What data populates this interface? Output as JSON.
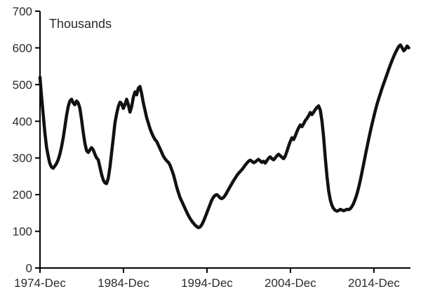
{
  "chart": {
    "unit_label": "Thousands"
  },
  "chart_data": {
    "type": "line",
    "title": "",
    "ylabel": "Thousands",
    "xlabel": "",
    "ylim": [
      0,
      700
    ],
    "y_ticks": [
      0,
      100,
      200,
      300,
      400,
      500,
      600,
      700
    ],
    "xlim": [
      1974.92,
      2019.3
    ],
    "x_tick_positions": [
      1974.92,
      1984.92,
      1994.92,
      2004.92,
      2014.92
    ],
    "x_tick_labels": [
      "1974-Dec",
      "1984-Dec",
      "1994-Dec",
      "2004-Dec",
      "2014-Dec"
    ],
    "grid": false,
    "legend": "none",
    "line_color": "#111111",
    "axis_color": "#000000",
    "line_width": 4.5,
    "series": [
      {
        "name": "Thousands",
        "points": [
          [
            1974.92,
            520
          ],
          [
            1975.1,
            470
          ],
          [
            1975.3,
            420
          ],
          [
            1975.5,
            370
          ],
          [
            1975.7,
            330
          ],
          [
            1975.9,
            305
          ],
          [
            1976.1,
            285
          ],
          [
            1976.3,
            275
          ],
          [
            1976.5,
            272
          ],
          [
            1976.7,
            278
          ],
          [
            1976.9,
            285
          ],
          [
            1977.1,
            295
          ],
          [
            1977.3,
            310
          ],
          [
            1977.5,
            330
          ],
          [
            1977.7,
            355
          ],
          [
            1977.9,
            385
          ],
          [
            1978.1,
            415
          ],
          [
            1978.3,
            440
          ],
          [
            1978.5,
            455
          ],
          [
            1978.7,
            460
          ],
          [
            1978.9,
            450
          ],
          [
            1979.1,
            445
          ],
          [
            1979.3,
            455
          ],
          [
            1979.5,
            450
          ],
          [
            1979.7,
            435
          ],
          [
            1979.9,
            405
          ],
          [
            1980.1,
            370
          ],
          [
            1980.3,
            340
          ],
          [
            1980.5,
            320
          ],
          [
            1980.7,
            315
          ],
          [
            1980.9,
            322
          ],
          [
            1981.1,
            328
          ],
          [
            1981.3,
            322
          ],
          [
            1981.5,
            310
          ],
          [
            1981.7,
            300
          ],
          [
            1981.9,
            295
          ],
          [
            1982.1,
            275
          ],
          [
            1982.3,
            255
          ],
          [
            1982.5,
            240
          ],
          [
            1982.7,
            232
          ],
          [
            1982.9,
            230
          ],
          [
            1983.1,
            245
          ],
          [
            1983.3,
            275
          ],
          [
            1983.5,
            315
          ],
          [
            1983.7,
            355
          ],
          [
            1983.9,
            395
          ],
          [
            1984.1,
            420
          ],
          [
            1984.3,
            440
          ],
          [
            1984.5,
            452
          ],
          [
            1984.7,
            448
          ],
          [
            1984.9,
            435
          ],
          [
            1985.1,
            445
          ],
          [
            1985.3,
            460
          ],
          [
            1985.5,
            445
          ],
          [
            1985.7,
            425
          ],
          [
            1985.9,
            440
          ],
          [
            1986.1,
            465
          ],
          [
            1986.3,
            480
          ],
          [
            1986.5,
            472
          ],
          [
            1986.7,
            490
          ],
          [
            1986.9,
            495
          ],
          [
            1987.1,
            475
          ],
          [
            1987.3,
            450
          ],
          [
            1987.5,
            430
          ],
          [
            1987.7,
            410
          ],
          [
            1987.9,
            395
          ],
          [
            1988.1,
            380
          ],
          [
            1988.3,
            368
          ],
          [
            1988.5,
            358
          ],
          [
            1988.7,
            350
          ],
          [
            1988.9,
            345
          ],
          [
            1989.1,
            335
          ],
          [
            1989.3,
            325
          ],
          [
            1989.5,
            315
          ],
          [
            1989.7,
            305
          ],
          [
            1989.9,
            298
          ],
          [
            1990.1,
            292
          ],
          [
            1990.3,
            288
          ],
          [
            1990.5,
            280
          ],
          [
            1990.7,
            268
          ],
          [
            1990.9,
            255
          ],
          [
            1991.1,
            238
          ],
          [
            1991.3,
            220
          ],
          [
            1991.5,
            205
          ],
          [
            1991.7,
            192
          ],
          [
            1991.9,
            182
          ],
          [
            1992.1,
            172
          ],
          [
            1992.3,
            162
          ],
          [
            1992.5,
            152
          ],
          [
            1992.7,
            143
          ],
          [
            1992.9,
            135
          ],
          [
            1993.1,
            128
          ],
          [
            1993.3,
            122
          ],
          [
            1993.5,
            117
          ],
          [
            1993.7,
            113
          ],
          [
            1993.9,
            110
          ],
          [
            1994.1,
            112
          ],
          [
            1994.3,
            118
          ],
          [
            1994.5,
            127
          ],
          [
            1994.7,
            138
          ],
          [
            1994.9,
            150
          ],
          [
            1995.1,
            162
          ],
          [
            1995.3,
            174
          ],
          [
            1995.5,
            185
          ],
          [
            1995.7,
            193
          ],
          [
            1995.9,
            198
          ],
          [
            1996.1,
            200
          ],
          [
            1996.3,
            196
          ],
          [
            1996.5,
            191
          ],
          [
            1996.7,
            189
          ],
          [
            1996.9,
            192
          ],
          [
            1997.1,
            198
          ],
          [
            1997.3,
            206
          ],
          [
            1997.5,
            214
          ],
          [
            1997.7,
            222
          ],
          [
            1997.9,
            230
          ],
          [
            1998.1,
            238
          ],
          [
            1998.3,
            245
          ],
          [
            1998.5,
            252
          ],
          [
            1998.7,
            258
          ],
          [
            1998.9,
            263
          ],
          [
            1999.1,
            268
          ],
          [
            1999.3,
            274
          ],
          [
            1999.5,
            280
          ],
          [
            1999.7,
            286
          ],
          [
            1999.9,
            291
          ],
          [
            2000.1,
            294
          ],
          [
            2000.3,
            291
          ],
          [
            2000.5,
            287
          ],
          [
            2000.7,
            289
          ],
          [
            2000.9,
            293
          ],
          [
            2001.1,
            296
          ],
          [
            2001.3,
            292
          ],
          [
            2001.5,
            288
          ],
          [
            2001.7,
            291
          ],
          [
            2001.9,
            286
          ],
          [
            2002.1,
            293
          ],
          [
            2002.3,
            299
          ],
          [
            2002.5,
            303
          ],
          [
            2002.7,
            298
          ],
          [
            2002.9,
            295
          ],
          [
            2003.1,
            300
          ],
          [
            2003.3,
            306
          ],
          [
            2003.5,
            310
          ],
          [
            2003.7,
            306
          ],
          [
            2003.9,
            302
          ],
          [
            2004.1,
            298
          ],
          [
            2004.3,
            305
          ],
          [
            2004.5,
            318
          ],
          [
            2004.7,
            332
          ],
          [
            2004.9,
            345
          ],
          [
            2005.1,
            355
          ],
          [
            2005.3,
            350
          ],
          [
            2005.5,
            360
          ],
          [
            2005.7,
            372
          ],
          [
            2005.9,
            382
          ],
          [
            2006.1,
            390
          ],
          [
            2006.3,
            385
          ],
          [
            2006.5,
            393
          ],
          [
            2006.7,
            402
          ],
          [
            2006.9,
            408
          ],
          [
            2007.1,
            415
          ],
          [
            2007.3,
            424
          ],
          [
            2007.5,
            418
          ],
          [
            2007.7,
            425
          ],
          [
            2007.9,
            432
          ],
          [
            2008.1,
            438
          ],
          [
            2008.3,
            442
          ],
          [
            2008.5,
            430
          ],
          [
            2008.7,
            400
          ],
          [
            2008.9,
            355
          ],
          [
            2009.1,
            300
          ],
          [
            2009.3,
            250
          ],
          [
            2009.5,
            210
          ],
          [
            2009.7,
            185
          ],
          [
            2009.9,
            170
          ],
          [
            2010.1,
            162
          ],
          [
            2010.3,
            157
          ],
          [
            2010.5,
            155
          ],
          [
            2010.7,
            157
          ],
          [
            2010.9,
            160
          ],
          [
            2011.1,
            158
          ],
          [
            2011.3,
            156
          ],
          [
            2011.5,
            158
          ],
          [
            2011.7,
            160
          ],
          [
            2011.9,
            159
          ],
          [
            2012.1,
            162
          ],
          [
            2012.3,
            168
          ],
          [
            2012.5,
            177
          ],
          [
            2012.7,
            189
          ],
          [
            2012.9,
            203
          ],
          [
            2013.1,
            220
          ],
          [
            2013.3,
            240
          ],
          [
            2013.5,
            262
          ],
          [
            2013.7,
            285
          ],
          [
            2013.9,
            308
          ],
          [
            2014.1,
            330
          ],
          [
            2014.3,
            352
          ],
          [
            2014.5,
            373
          ],
          [
            2014.7,
            393
          ],
          [
            2014.9,
            412
          ],
          [
            2015.1,
            430
          ],
          [
            2015.3,
            447
          ],
          [
            2015.5,
            462
          ],
          [
            2015.7,
            476
          ],
          [
            2015.9,
            490
          ],
          [
            2016.1,
            503
          ],
          [
            2016.3,
            516
          ],
          [
            2016.5,
            529
          ],
          [
            2016.7,
            542
          ],
          [
            2016.9,
            554
          ],
          [
            2017.1,
            566
          ],
          [
            2017.3,
            577
          ],
          [
            2017.5,
            587
          ],
          [
            2017.7,
            596
          ],
          [
            2017.9,
            604
          ],
          [
            2018.1,
            608
          ],
          [
            2018.3,
            600
          ],
          [
            2018.5,
            592
          ],
          [
            2018.7,
            597
          ],
          [
            2018.9,
            605
          ],
          [
            2019.1,
            600
          ]
        ]
      }
    ]
  }
}
